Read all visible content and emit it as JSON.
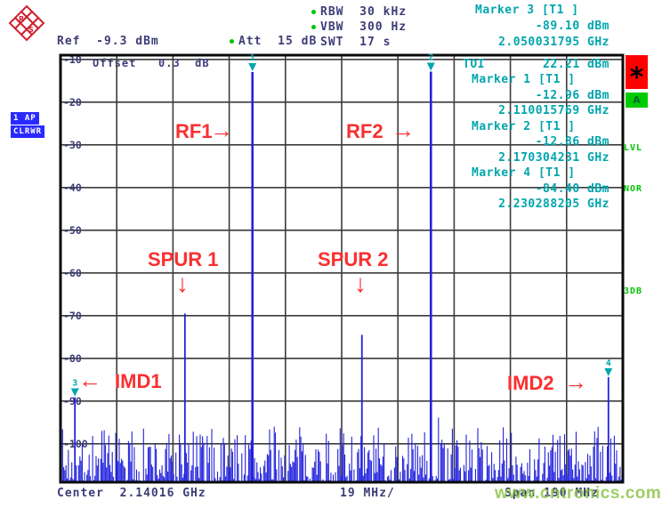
{
  "header": {
    "ref": "Ref  -9.3 dBm",
    "att": "Att  15 dB",
    "rbw": "RBW  30 kHz",
    "vbw": "VBW  300 Hz",
    "swt": "SWT  17 s",
    "offset": "Offset   0.3  dB"
  },
  "marker3_readout": {
    "title": "Marker 3 [T1 ]",
    "level": "-89.10 dBm",
    "frequency": "2.050031795 GHz"
  },
  "results_panel": {
    "toi_label": "TOI",
    "toi_value": "22.21 dBm",
    "rows": [
      {
        "title": "Marker 1 [T1 ]",
        "level": "-12.96 dBm",
        "frequency": "2.110015769 GHz"
      },
      {
        "title": "Marker 2 [T1 ]",
        "level": "-12.86 dBm",
        "frequency": "2.170304231 GHz"
      },
      {
        "title": "Marker 4 [T1 ]",
        "level": "-84.40 dBm",
        "frequency": "2.230288205 GHz"
      }
    ]
  },
  "trace_status": {
    "line1": "1 AP",
    "line2": "CLRWR"
  },
  "right_status": {
    "enhancement_star": "*",
    "trace_a": "A",
    "lvl": "LVL",
    "nor": "NOR",
    "threedb": "3DB"
  },
  "annotations": {
    "rf1": "RF1",
    "rf2": "RF2",
    "spur1": "SPUR 1",
    "spur2": "SPUR 2",
    "imd1": "IMD1",
    "imd2": "IMD2",
    "arrow_right": "→",
    "arrow_left": "←",
    "arrow_down": "↓"
  },
  "footer": {
    "center": "Center  2.14016 GHz",
    "per_div": "19 MHz/",
    "span": "Span 190 MHz"
  },
  "watermark": "www.cntronics.com",
  "colors": {
    "trace": "#2222dd",
    "marker": "#00a5ad",
    "annotation": "#fa2f2f",
    "header_text": "#3d3d78",
    "grid_line": "#3c3c3c",
    "grid_border": "#0a0a0a",
    "status_green": "#00c400",
    "enh_red": "#ff0000"
  },
  "chart_data": {
    "type": "line",
    "title": "",
    "x_axis": {
      "center_label": "Center  2.14016 GHz",
      "per_div_label": "19 MHz/",
      "span_label": "Span 190 MHz",
      "center_ghz": 2.14016,
      "span_ghz": 0.19,
      "start_ghz": 2.04516,
      "stop_ghz": 2.23516,
      "divisions": 10
    },
    "y_axis": {
      "unit": "dBm",
      "ref_dbm": -9.3,
      "ref_offset_db": 0.3,
      "db_per_div": 10,
      "top_dbm": -9,
      "bottom_dbm": -109,
      "tick_labels": [
        "-10",
        "-20",
        "-30",
        "-40",
        "-50",
        "-60",
        "-70",
        "-80",
        "-90",
        "-100"
      ]
    },
    "grid": true,
    "legend": false,
    "noise_floor_dbm": -104,
    "toi_dbm": 22.21,
    "peaks": [
      {
        "name": "IMD1",
        "marker": "3",
        "freq_ghz": 2.050031795,
        "level_dbm": -89.1
      },
      {
        "name": "SPUR 1",
        "marker": "",
        "freq_ghz": 2.0872,
        "level_dbm": -69.5
      },
      {
        "name": "RF1",
        "marker": "1",
        "freq_ghz": 2.110015769,
        "level_dbm": -12.96
      },
      {
        "name": "SPUR 2",
        "marker": "",
        "freq_ghz": 2.147,
        "level_dbm": -74.5
      },
      {
        "name": "RF2",
        "marker": "2",
        "freq_ghz": 2.170304231,
        "level_dbm": -12.86
      },
      {
        "name": "IMD2",
        "marker": "4",
        "freq_ghz": 2.230288205,
        "level_dbm": -84.4
      }
    ]
  }
}
